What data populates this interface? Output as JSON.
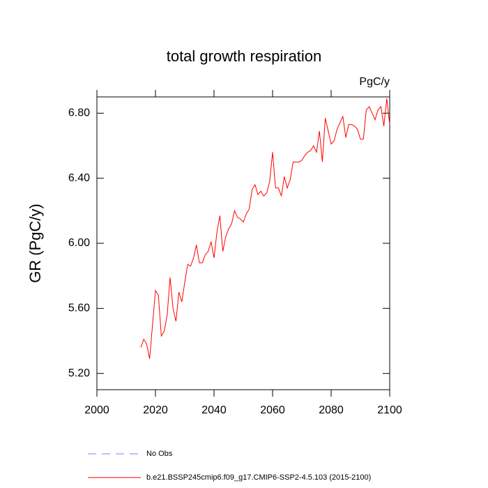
{
  "chart_data": {
    "type": "line",
    "title": "total growth respiration",
    "subtitle": "PgC/y",
    "y_label": "GR  (PgC/y)",
    "x": [
      2015,
      2016,
      2017,
      2018,
      2019,
      2020,
      2021,
      2022,
      2023,
      2024,
      2025,
      2026,
      2027,
      2028,
      2029,
      2030,
      2031,
      2032,
      2033,
      2034,
      2035,
      2036,
      2037,
      2038,
      2039,
      2040,
      2041,
      2042,
      2043,
      2044,
      2045,
      2046,
      2047,
      2048,
      2049,
      2050,
      2051,
      2052,
      2053,
      2054,
      2055,
      2056,
      2057,
      2058,
      2059,
      2060,
      2061,
      2062,
      2063,
      2064,
      2065,
      2066,
      2067,
      2068,
      2069,
      2070,
      2071,
      2072,
      2073,
      2074,
      2075,
      2076,
      2077,
      2078,
      2079,
      2080,
      2081,
      2082,
      2083,
      2084,
      2085,
      2086,
      2087,
      2088,
      2089,
      2090,
      2091,
      2092,
      2093,
      2094,
      2095,
      2096,
      2097,
      2098,
      2099,
      2100
    ],
    "series": [
      {
        "name": "b.e21.BSSP245cmip6.f09_g17.CMIP6-SSP2-4.5.103 (2015-2100)",
        "color": "#ff0000",
        "values": [
          5.36,
          5.41,
          5.38,
          5.29,
          5.5,
          5.71,
          5.68,
          5.43,
          5.46,
          5.56,
          5.79,
          5.6,
          5.52,
          5.7,
          5.64,
          5.76,
          5.87,
          5.86,
          5.91,
          5.99,
          5.88,
          5.88,
          5.93,
          5.95,
          6.01,
          5.91,
          6.07,
          6.17,
          5.95,
          6.04,
          6.09,
          6.12,
          6.2,
          6.16,
          6.15,
          6.13,
          6.18,
          6.21,
          6.33,
          6.36,
          6.3,
          6.32,
          6.29,
          6.31,
          6.38,
          6.56,
          6.34,
          6.34,
          6.29,
          6.41,
          6.34,
          6.39,
          6.5,
          6.5,
          6.5,
          6.51,
          6.54,
          6.56,
          6.57,
          6.6,
          6.56,
          6.69,
          6.5,
          6.77,
          6.69,
          6.61,
          6.63,
          6.7,
          6.74,
          6.78,
          6.65,
          6.73,
          6.73,
          6.72,
          6.7,
          6.64,
          6.64,
          6.82,
          6.84,
          6.8,
          6.76,
          6.82,
          6.84,
          6.72,
          6.89,
          6.73
        ]
      }
    ],
    "reference": {
      "name": "No Obs",
      "color": "#7f7fff"
    },
    "xlim": [
      2000,
      2100
    ],
    "xticks": [
      2000,
      2020,
      2040,
      2060,
      2080,
      2100
    ],
    "ylim": [
      5.1,
      6.9
    ],
    "yticks": [
      {
        "value": 5.2,
        "label": "5.20"
      },
      {
        "value": 5.6,
        "label": "5.60"
      },
      {
        "value": 6.0,
        "label": "6.00"
      },
      {
        "value": 6.4,
        "label": "6.40"
      },
      {
        "value": 6.8,
        "label": "6.80"
      }
    ],
    "grid": false
  }
}
